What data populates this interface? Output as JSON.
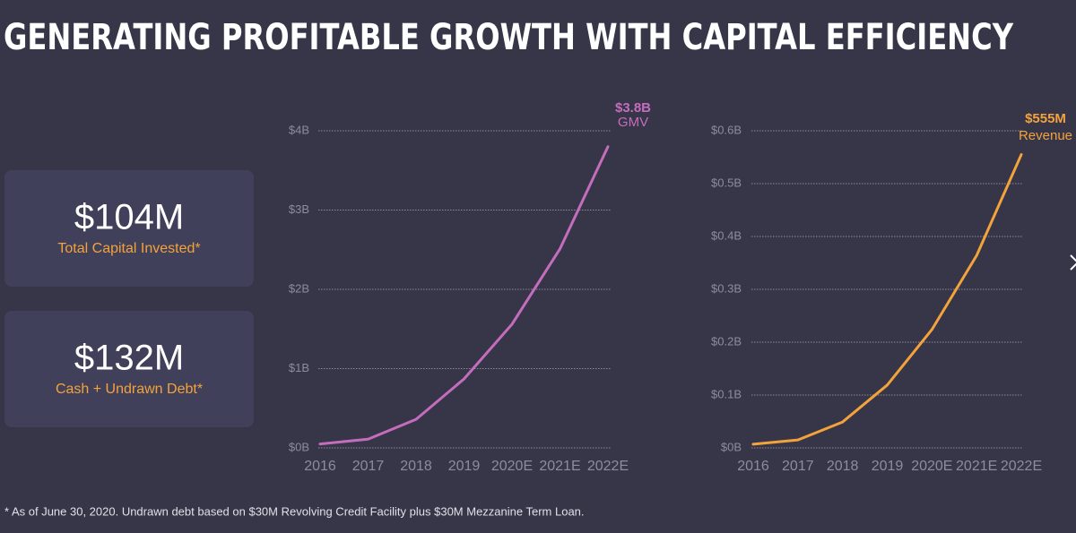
{
  "title": "GENERATING PROFITABLE GROWTH WITH CAPITAL EFFICIENCY",
  "stats": [
    {
      "value": "$104M",
      "label": "Total Capital Invested*"
    },
    {
      "value": "$132M",
      "label": "Cash + Undrawn Debt*"
    }
  ],
  "chart_data": [
    {
      "type": "line",
      "categories": [
        "2016",
        "2017",
        "2018",
        "2019",
        "2020E",
        "2021E",
        "2022E"
      ],
      "series": [
        {
          "name": "GMV",
          "color": "#c46dbd",
          "values": [
            0.05,
            0.11,
            0.36,
            0.87,
            1.56,
            2.51,
            3.8
          ],
          "value_labels": [
            null,
            null,
            null,
            null,
            null,
            null,
            "$3.8B"
          ]
        }
      ],
      "ylim": [
        0,
        4
      ],
      "yticks": [
        {
          "value": 0,
          "label": "$0B"
        },
        {
          "value": 1,
          "label": "$1B"
        },
        {
          "value": 2,
          "label": "$2B"
        },
        {
          "value": 3,
          "label": "$3B"
        },
        {
          "value": 4,
          "label": "$4B"
        }
      ],
      "grid": true
    },
    {
      "type": "line",
      "categories": [
        "2016",
        "2017",
        "2018",
        "2019",
        "2020E",
        "2021E",
        "2022E"
      ],
      "series": [
        {
          "name": "Revenue",
          "color": "#f4a23c",
          "values": [
            0.007,
            0.015,
            0.049,
            0.119,
            0.224,
            0.364,
            0.555
          ],
          "value_labels": [
            null,
            null,
            null,
            null,
            null,
            null,
            "$555M"
          ]
        }
      ],
      "ylim": [
        0,
        0.6
      ],
      "yticks": [
        {
          "value": 0,
          "label": "$0B"
        },
        {
          "value": 0.1,
          "label": "$0.1B"
        },
        {
          "value": 0.2,
          "label": "$0.2B"
        },
        {
          "value": 0.3,
          "label": "$0.3B"
        },
        {
          "value": 0.4,
          "label": "$0.4B"
        },
        {
          "value": 0.5,
          "label": "$0.5B"
        },
        {
          "value": 0.6,
          "label": "$0.6B"
        }
      ],
      "grid": true
    }
  ],
  "footnote": "* As of June 30, 2020.  Undrawn debt based on $30M Revolving Credit Facility plus $30M Mezzanine Term Loan."
}
